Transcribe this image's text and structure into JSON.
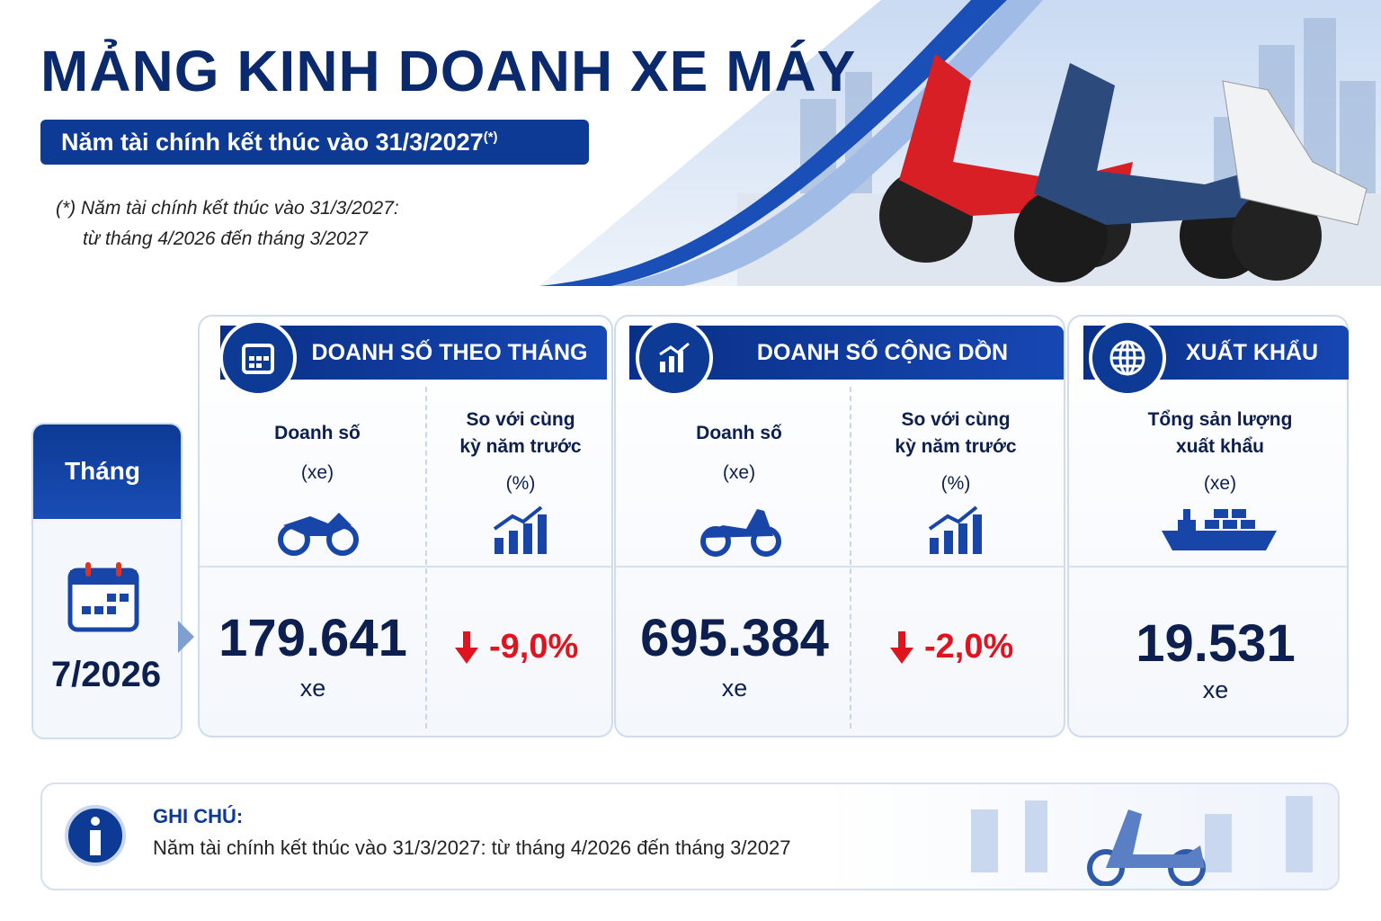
{
  "header": {
    "title": "MẢNG KINH DOANH XE MÁY",
    "subtitle": "Năm tài chính kết thúc vào 31/3/2027",
    "subtitle_mark": "(*)",
    "footnote": [
      "(*) Năm tài chính kết thúc vào 31/3/2027:",
      "từ tháng 4/2026 đến tháng 3/2027"
    ]
  },
  "period": {
    "label": "Tháng",
    "value": "7/2026"
  },
  "sections": [
    {
      "title": "DOANH SỐ THEO THÁNG",
      "columns": [
        {
          "label": [
            "Doanh số"
          ],
          "unit": "(xe)",
          "value": "179.641",
          "value_unit": "xe"
        },
        {
          "label": [
            "So với cùng",
            "kỳ năm trước"
          ],
          "unit": "(%)",
          "value": "-9,0%",
          "trend": "down"
        }
      ]
    },
    {
      "title": "DOANH SỐ CỘNG DỒN",
      "columns": [
        {
          "label": [
            "Doanh số"
          ],
          "unit": "(xe)",
          "value": "695.384",
          "value_unit": "xe"
        },
        {
          "label": [
            "So với cùng",
            "kỳ năm trước"
          ],
          "unit": "(%)",
          "value": "-2,0%",
          "trend": "down"
        }
      ]
    },
    {
      "title": "XUẤT KHẨU",
      "columns": [
        {
          "label": [
            "Tổng sản lượng",
            "xuất khẩu"
          ],
          "unit": "(xe)",
          "value": "19.531",
          "value_unit": "xe"
        }
      ]
    }
  ],
  "note": {
    "title": "GHI CHÚ:",
    "text": "Năm tài chính kết thúc vào 31/3/2027: từ tháng 4/2026 đến tháng 3/2027"
  }
}
